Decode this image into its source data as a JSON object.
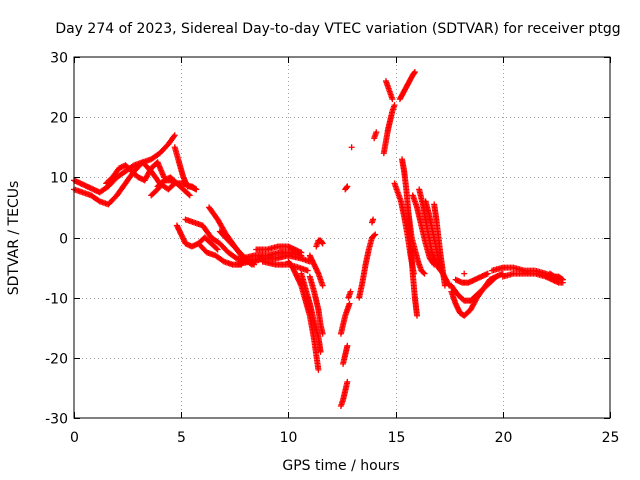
{
  "chart_data": {
    "type": "scatter",
    "title": "Day 274 of 2023, Sidereal Day-to-day VTEC variation (SDTVAR) for receiver ptgg",
    "xlabel": "GPS time / hours",
    "ylabel": "SDTVAR / TECUs",
    "xlim": [
      0,
      25
    ],
    "ylim": [
      -30,
      30
    ],
    "xticks": [
      0,
      5,
      10,
      15,
      20,
      25
    ],
    "yticks": [
      -30,
      -20,
      -10,
      0,
      10,
      20,
      30
    ],
    "xtick_labels": [
      "0",
      "5",
      "10",
      "15",
      "20",
      "25"
    ],
    "ytick_labels": [
      "-30",
      "-20",
      "-10",
      "0",
      "10",
      "20",
      "30"
    ],
    "grid": true,
    "marker": "plus",
    "series": [
      {
        "name": "SDTVAR",
        "color": "#ff0000",
        "tracks": [
          {
            "x": [
              0.0,
              0.3,
              0.6,
              0.9,
              1.2,
              1.6,
              2.0,
              2.4,
              2.8,
              3.2,
              3.6,
              4.0,
              4.4,
              4.7
            ],
            "y": [
              9.5,
              9.0,
              8.5,
              8.0,
              7.5,
              8.5,
              10.0,
              11.0,
              12.0,
              12.5,
              13.0,
              14.0,
              15.5,
              17.0
            ]
          },
          {
            "x": [
              0.0,
              0.4,
              0.8,
              1.2,
              1.6,
              2.0,
              2.4,
              2.8,
              3.2,
              3.6,
              4.0,
              4.4,
              4.7
            ],
            "y": [
              8.0,
              7.5,
              7.0,
              6.0,
              5.5,
              7.0,
              9.0,
              11.0,
              12.5,
              11.0,
              9.0,
              8.0,
              9.0
            ]
          },
          {
            "x": [
              1.5,
              1.8,
              2.1,
              2.4,
              2.7,
              3.0,
              3.3,
              3.6,
              3.9,
              4.2
            ],
            "y": [
              9.0,
              10.0,
              11.5,
              12.0,
              11.0,
              10.0,
              9.5,
              11.5,
              12.5,
              10.0
            ]
          },
          {
            "x": [
              3.9,
              4.2,
              4.5,
              4.8,
              5.1,
              5.4,
              5.7
            ],
            "y": [
              8.5,
              9.5,
              9.5,
              9.0,
              9.0,
              8.5,
              8.0
            ]
          },
          {
            "x": [
              3.6,
              3.9,
              4.2,
              4.5,
              4.8,
              5.1,
              5.4
            ],
            "y": [
              7.0,
              8.0,
              9.5,
              10.0,
              9.0,
              8.0,
              7.0
            ]
          },
          {
            "x": [
              4.7,
              4.9,
              5.1,
              5.3,
              5.5,
              5.7
            ],
            "y": [
              15.0,
              12.5,
              10.0,
              8.5,
              8.5,
              8.0
            ]
          },
          {
            "x": [
              4.8,
              5.0,
              5.2,
              5.5,
              5.8,
              6.1,
              6.4,
              6.7
            ],
            "y": [
              2.0,
              0.5,
              -1.0,
              -1.5,
              -1.0,
              0.0,
              -1.0,
              -2.0
            ]
          },
          {
            "x": [
              5.2,
              5.6,
              6.0,
              6.4,
              6.8,
              7.2,
              7.6,
              8.0,
              8.4,
              8.8
            ],
            "y": [
              3.0,
              2.5,
              2.0,
              0.0,
              -1.0,
              -2.5,
              -3.5,
              -4.0,
              -4.0,
              -3.5
            ]
          },
          {
            "x": [
              5.8,
              6.2,
              6.6,
              7.0,
              7.4,
              7.8
            ],
            "y": [
              -1.0,
              -2.5,
              -3.0,
              -4.0,
              -4.5,
              -4.5
            ]
          },
          {
            "x": [
              6.3,
              6.7,
              7.1,
              7.5,
              7.9,
              8.3
            ],
            "y": [
              5.0,
              3.0,
              0.5,
              -1.5,
              -3.5,
              -4.5
            ]
          },
          {
            "x": [
              6.8,
              7.2,
              7.6,
              8.0,
              8.4
            ],
            "y": [
              1.0,
              -0.5,
              -2.0,
              -3.5,
              -4.5
            ]
          },
          {
            "x": [
              7.6,
              8.2,
              8.8,
              9.4,
              10.0,
              10.6,
              11.0
            ],
            "y": [
              -4.5,
              -4.0,
              -3.5,
              -3.5,
              -3.0,
              -3.5,
              -4.0
            ]
          },
          {
            "x": [
              7.8,
              8.4,
              9.0,
              9.6,
              10.2,
              10.6
            ],
            "y": [
              -3.5,
              -3.0,
              -3.0,
              -2.5,
              -2.5,
              -3.0
            ]
          },
          {
            "x": [
              8.5,
              9.0,
              9.5,
              10.0,
              10.3,
              10.6
            ],
            "y": [
              -2.0,
              -2.0,
              -1.5,
              -1.5,
              -2.0,
              -2.5
            ]
          },
          {
            "x": [
              8.8,
              9.4,
              10.0,
              10.5,
              10.9
            ],
            "y": [
              -4.0,
              -4.5,
              -4.5,
              -5.0,
              -5.5
            ]
          },
          {
            "x": [
              10.0,
              10.2,
              10.4,
              10.6,
              10.8,
              11.0,
              11.2,
              11.4
            ],
            "y": [
              -4.0,
              -5.0,
              -6.5,
              -8.0,
              -10.5,
              -13.0,
              -17.0,
              -22.0
            ]
          },
          {
            "x": [
              10.6,
              10.8,
              11.0,
              11.2,
              11.4,
              11.5
            ],
            "y": [
              -6.0,
              -8.5,
              -11.0,
              -14.0,
              -16.5,
              -19.0
            ]
          },
          {
            "x": [
              11.0,
              11.2,
              11.4,
              11.5,
              11.6
            ],
            "y": [
              -6.5,
              -9.0,
              -12.0,
              -14.5,
              -16.0
            ]
          },
          {
            "x": [
              11.3,
              11.4,
              11.5,
              11.6
            ],
            "y": [
              -1.5,
              -0.5,
              -0.5,
              -1.0
            ]
          },
          {
            "x": [
              11.0,
              11.2,
              11.4,
              11.6
            ],
            "y": [
              -3.0,
              -4.5,
              -6.0,
              -8.0
            ]
          },
          {
            "x": [
              12.45,
              12.55,
              12.65,
              12.75
            ],
            "y": [
              -28.0,
              -27.0,
              -25.5,
              -24.0
            ]
          },
          {
            "x": [
              12.45,
              12.55,
              12.65,
              12.75,
              12.85
            ],
            "y": [
              -16.0,
              -14.5,
              -13.0,
              -12.0,
              -11.0
            ]
          },
          {
            "x": [
              12.55,
              12.65,
              12.75
            ],
            "y": [
              -21.0,
              -19.5,
              -18.0
            ]
          },
          {
            "x": [
              12.8,
              12.9
            ],
            "y": [
              -10.0,
              -9.0
            ]
          },
          {
            "x": [
              12.65,
              12.75
            ],
            "y": [
              8.0,
              8.5
            ]
          },
          {
            "x": [
              12.95
            ],
            "y": [
              15.0
            ]
          },
          {
            "x": [
              13.3,
              13.45,
              13.6,
              13.75,
              13.9,
              14.05
            ],
            "y": [
              -10.0,
              -7.5,
              -4.5,
              -2.0,
              0.0,
              0.5
            ]
          },
          {
            "x": [
              13.9,
              13.95
            ],
            "y": [
              2.5,
              3.0
            ]
          },
          {
            "x": [
              14.0,
              14.1
            ],
            "y": [
              16.5,
              17.5
            ]
          },
          {
            "x": [
              14.45,
              14.55,
              14.65,
              14.75,
              14.85,
              14.95
            ],
            "y": [
              14.0,
              16.0,
              18.0,
              19.5,
              21.0,
              22.0
            ]
          },
          {
            "x": [
              14.55,
              14.65,
              14.75,
              14.85
            ],
            "y": [
              26.0,
              25.0,
              24.0,
              23.0
            ]
          },
          {
            "x": [
              15.2,
              15.35,
              15.5,
              15.65,
              15.8,
              15.9
            ],
            "y": [
              23.0,
              24.0,
              25.0,
              26.0,
              27.0,
              27.5
            ]
          },
          {
            "x": [
              14.95,
              15.1,
              15.25,
              15.4,
              15.55,
              15.7,
              15.85
            ],
            "y": [
              9.0,
              7.5,
              6.0,
              3.5,
              0.5,
              -3.0,
              -6.0
            ]
          },
          {
            "x": [
              15.3,
              15.4,
              15.5,
              15.6,
              15.7,
              15.8,
              15.9,
              16.0
            ],
            "y": [
              13.0,
              11.0,
              8.0,
              4.0,
              -1.0,
              -6.0,
              -10.0,
              -13.0
            ]
          },
          {
            "x": [
              15.6,
              15.75,
              15.9,
              16.05,
              16.2,
              16.35
            ],
            "y": [
              4.0,
              0.0,
              -2.0,
              -4.0,
              -5.5,
              -6.0
            ]
          },
          {
            "x": [
              15.8,
              16.0,
              16.2,
              16.4,
              16.6,
              16.8
            ],
            "y": [
              7.0,
              5.0,
              2.0,
              -1.0,
              -3.5,
              -4.5
            ]
          },
          {
            "x": [
              16.1,
              16.3,
              16.5,
              16.7,
              16.9,
              17.1
            ],
            "y": [
              8.0,
              5.0,
              1.0,
              -2.5,
              -4.5,
              -5.5
            ]
          },
          {
            "x": [
              16.4,
              16.55,
              16.7,
              16.85,
              17.0,
              17.15
            ],
            "y": [
              6.0,
              4.0,
              1.5,
              -1.0,
              -3.5,
              -5.0
            ]
          },
          {
            "x": [
              16.8,
              16.9,
              17.0,
              17.1,
              17.2,
              17.3
            ],
            "y": [
              5.5,
              3.0,
              0.0,
              -3.0,
              -5.5,
              -8.0
            ]
          },
          {
            "x": [
              16.9,
              17.05,
              17.2,
              17.35,
              17.5
            ],
            "y": [
              -4.0,
              -5.0,
              -6.0,
              -7.0,
              -8.0
            ]
          },
          {
            "x": [
              17.6,
              17.8,
              18.0,
              18.2,
              18.5,
              18.8,
              19.1,
              19.4,
              19.7,
              20.0
            ],
            "y": [
              -9.0,
              -11.0,
              -12.5,
              -13.0,
              -12.0,
              -10.0,
              -8.5,
              -7.5,
              -6.5,
              -6.0
            ]
          },
          {
            "x": [
              17.6,
              17.9,
              18.2,
              18.5,
              18.8,
              19.1,
              19.4,
              19.7
            ],
            "y": [
              -8.0,
              -9.5,
              -10.5,
              -10.5,
              -9.5,
              -8.5,
              -7.0,
              -6.5
            ]
          },
          {
            "x": [
              17.8,
              18.1,
              18.4,
              18.7,
              19.0,
              19.3
            ],
            "y": [
              -7.0,
              -7.5,
              -7.5,
              -7.0,
              -6.5,
              -6.0
            ]
          },
          {
            "x": [
              18.2
            ],
            "y": [
              -6.0
            ]
          },
          {
            "x": [
              19.5,
              20.0,
              20.5,
              21.0,
              21.5,
              22.0,
              22.4,
              22.8
            ],
            "y": [
              -5.5,
              -5.0,
              -5.0,
              -5.5,
              -5.5,
              -6.0,
              -6.5,
              -7.0
            ]
          },
          {
            "x": [
              20.0,
              20.5,
              21.0,
              21.5,
              22.0,
              22.3,
              22.6,
              22.8
            ],
            "y": [
              -6.5,
              -6.0,
              -6.0,
              -6.0,
              -6.5,
              -7.0,
              -7.5,
              -7.5
            ]
          },
          {
            "x": [
              22.2,
              22.4,
              22.6,
              22.8
            ],
            "y": [
              -6.0,
              -6.5,
              -6.5,
              -7.0
            ]
          }
        ]
      }
    ]
  }
}
